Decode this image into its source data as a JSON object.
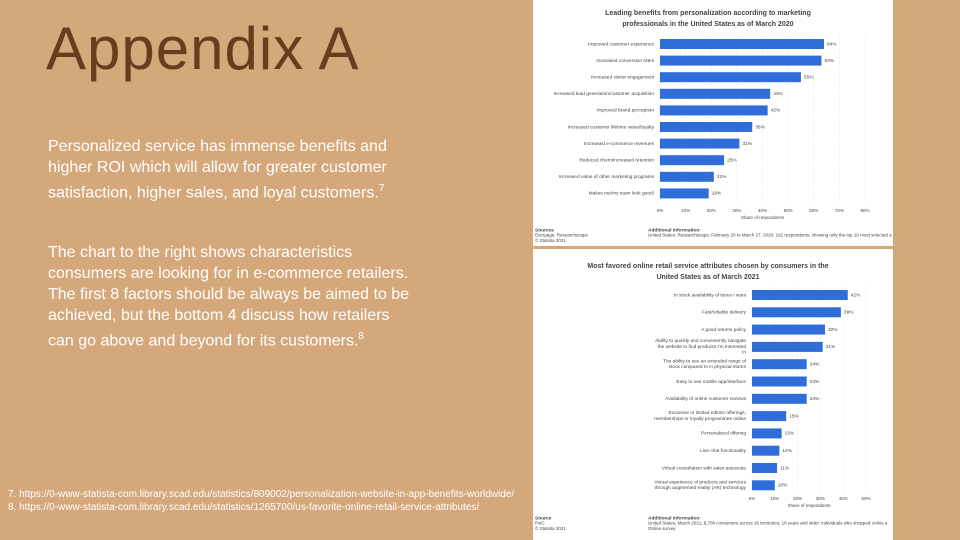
{
  "slide": {
    "title": "Appendix A",
    "paragraphs": [
      {
        "text": "Personalized service has immense benefits and higher ROI which will allow for greater customer satisfaction, higher sales, and loyal customers.",
        "ref": "7"
      },
      {
        "text": "The chart to the right shows characteristics consumers are looking for in e-commerce retailers. The first 8 factors should be always be aimed to be achieved, but the bottom 4 discuss how retailers can go above and beyond for its customers.",
        "ref": "8"
      }
    ],
    "footnotes": [
      "7. https://0-www-statista-com.library.scad.edu/statistics/809002/personalization-website-in-app-benefits-worldwide/",
      "8. https://0-www-statista-com.library.scad.edu/statistics/1265700/us-favorite-online-retail-service-attributes/"
    ]
  },
  "chart_data": [
    {
      "type": "hbar",
      "title": "Leading benefits from personalization according to marketing professionals in the United States as of March 2020",
      "categories": [
        "Improved customer experience",
        "Increased conversion rates",
        "Increased visitor engagement",
        "Increased lead generation/customer acquisition",
        "Improved brand perception",
        "Increased customer lifetime value/loyalty",
        "Increased e-commerce revenues",
        "Reduced churn/increased retention",
        "Increased value of other marketing programs",
        "Makes me/my team look good!"
      ],
      "values": [
        64,
        63,
        55,
        43,
        42,
        36,
        31,
        25,
        21,
        19
      ],
      "value_labels": [
        "64%",
        "63%",
        "55%",
        "43%",
        "42%",
        "36%",
        "31%",
        "25%",
        "21%",
        "19%"
      ],
      "color": "#2f6ed8",
      "xlim": [
        0,
        80
      ],
      "xticks": [
        {
          "value": 0,
          "label": "0%"
        },
        {
          "value": 10,
          "label": "10%"
        },
        {
          "value": 20,
          "label": "20%"
        },
        {
          "value": 30,
          "label": "30%"
        },
        {
          "value": 40,
          "label": "40%"
        },
        {
          "value": 50,
          "label": "50%"
        },
        {
          "value": 60,
          "label": "60%"
        },
        {
          "value": 70,
          "label": "70%"
        },
        {
          "value": 80,
          "label": "80%"
        }
      ],
      "xlabel": "Share of respondents",
      "grid": true,
      "sources_heading": "Sources",
      "sources": [
        "Evergage; Researchscape",
        "© Statista 2021"
      ],
      "info_heading": "Additional Information:",
      "info": [
        "United States; Researchscape; February 20 to March 27, 2020; 191 respondents; showing only the top 10 most selected a"
      ]
    },
    {
      "type": "hbar",
      "title": "Most favored online retail service attributes chosen by consumers in the United States as of March 2021",
      "categories": [
        "In stock availability of items I want",
        "Fast/reliable delivery",
        "A good returns policy",
        "Ability to quickly and conveniently navigate the website to find products I'm interested in",
        "The ability to see an extended range of stock compared to in physical stores",
        "Easy to use mobile app/interface",
        "Availability of online customer reviews",
        "Exclusive or limited edition offerings, memberships or loyalty programmes online",
        "Personalized offering",
        "Live chat functionality",
        "Virtual consultation with sales associate",
        "Virtual experience of products and services through augmented reality (AR) technology"
      ],
      "values": [
        42,
        39,
        32,
        31,
        24,
        24,
        24,
        15,
        13,
        12,
        11,
        10
      ],
      "value_labels": [
        "42%",
        "39%",
        "32%",
        "31%",
        "24%",
        "24%",
        "24%",
        "15%",
        "13%",
        "12%",
        "11%",
        "10%"
      ],
      "color": "#2f6ed8",
      "xlim": [
        0,
        50
      ],
      "xticks": [
        {
          "value": 0,
          "label": "0%"
        },
        {
          "value": 10,
          "label": "10%"
        },
        {
          "value": 20,
          "label": "20%"
        },
        {
          "value": 30,
          "label": "30%"
        },
        {
          "value": 40,
          "label": "40%"
        },
        {
          "value": 50,
          "label": "50%"
        }
      ],
      "xlabel": "Share of respondents",
      "grid": true,
      "sources_heading": "Source",
      "sources": [
        "PwC",
        "© Statista 2021"
      ],
      "info_heading": "Additional Information:",
      "info": [
        "United States; March 2021; 8,708 consumers across 26 territories; 18 years and older; individuals who shopped online a",
        "Online survey"
      ]
    }
  ]
}
